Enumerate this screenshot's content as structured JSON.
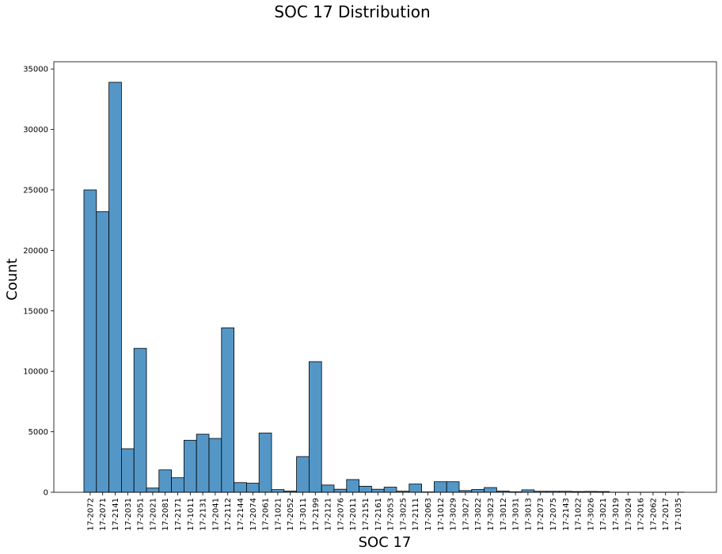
{
  "chart_data": {
    "type": "bar",
    "title": "SOC 17 Distribution",
    "xlabel": "SOC 17",
    "ylabel": "Count",
    "ylim": [
      0,
      35600
    ],
    "yticks": [
      0,
      5000,
      10000,
      15000,
      20000,
      25000,
      30000,
      35000
    ],
    "grid": false,
    "bar_color": "#5497c7",
    "edge_color": "#000000",
    "categories": [
      "17-2072",
      "17-2071",
      "17-2141",
      "17-2031",
      "17-2051",
      "17-2021",
      "17-2081",
      "17-2171",
      "17-1011",
      "17-2131",
      "17-2041",
      "17-2112",
      "17-2144",
      "17-2074",
      "17-2061",
      "17-1021",
      "17-2052",
      "17-3011",
      "17-2199",
      "17-2121",
      "17-2076",
      "17-2011",
      "17-2151",
      "17-2161",
      "17-2053",
      "17-3025",
      "17-2111",
      "17-2063",
      "17-1012",
      "17-3029",
      "17-3027",
      "17-3022",
      "17-3023",
      "17-3012",
      "17-3031",
      "17-3013",
      "17-2073",
      "17-2075",
      "17-2143",
      "17-1022",
      "17-3026",
      "17-3021",
      "17-3019",
      "17-3024",
      "17-2016",
      "17-2062",
      "17-2017",
      "17-1035"
    ],
    "values": [
      25000,
      23200,
      33900,
      3600,
      11900,
      350,
      1850,
      1200,
      4300,
      4800,
      4450,
      13600,
      800,
      750,
      4900,
      220,
      100,
      2950,
      10800,
      600,
      250,
      1050,
      500,
      250,
      420,
      90,
      680,
      30,
      870,
      870,
      140,
      230,
      390,
      100,
      40,
      200,
      80,
      80,
      80,
      60,
      70,
      60,
      10,
      10,
      10,
      10,
      10,
      10
    ]
  }
}
